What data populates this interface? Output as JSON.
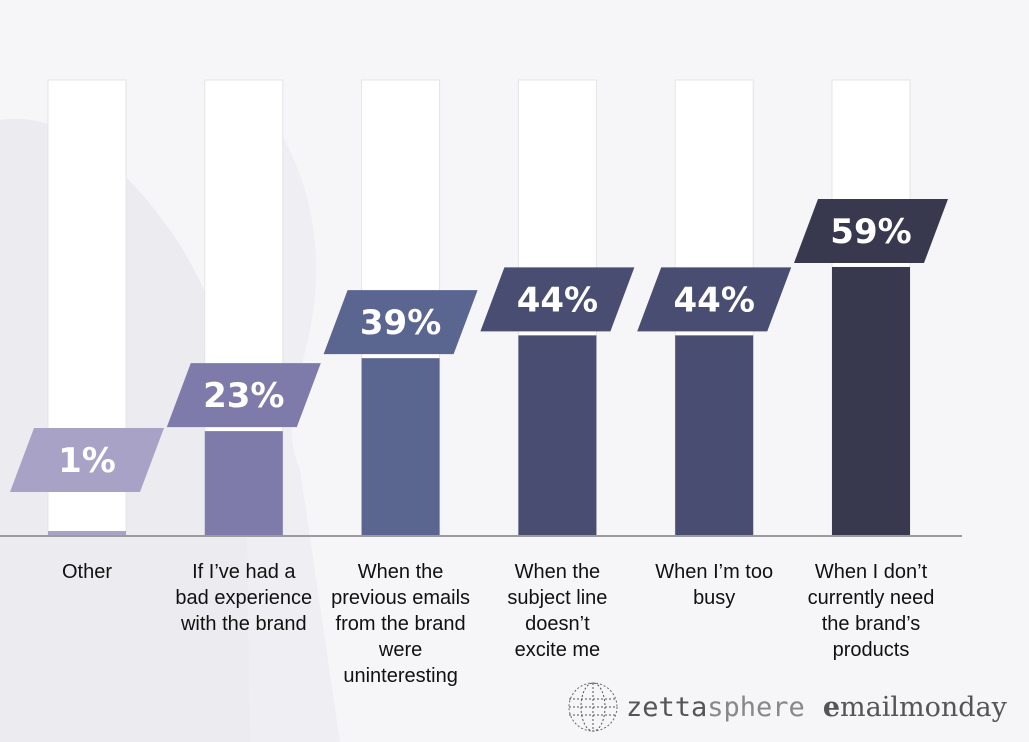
{
  "colors": {
    "bar_1": "#a8a3c6",
    "bar_23": "#7e7baa",
    "bar_39": "#5a6590",
    "bar_44": "#494d72",
    "bar_59": "#38394f",
    "axis": "#9b9b9b",
    "track": "#ffffff"
  },
  "chart_data": {
    "type": "bar",
    "categories": [
      "Other",
      "If I’ve had a\nbad experience\nwith the brand",
      "When the\nprevious emails\nfrom the brand\nwere\nuninteresting",
      "When the\nsubject line\ndoesn’t\nexcite me",
      "When I’m too\nbusy",
      "When I don’t\ncurrently need\nthe brand’s\nproducts"
    ],
    "values": [
      1,
      23,
      39,
      44,
      44,
      59
    ],
    "value_labels": [
      "1%",
      "23%",
      "39%",
      "44%",
      "44%",
      "59%"
    ],
    "bar_colors": [
      "#a8a3c6",
      "#7e7baa",
      "#5a6590",
      "#494d72",
      "#494d72",
      "#38394f"
    ],
    "ylim": [
      0,
      100
    ],
    "grid": false,
    "legend": "none"
  },
  "brand": {
    "logo1_part1": "zetta",
    "logo1_part2": "sphere",
    "logo2_first": "e",
    "logo2_rest": "mailmonday"
  }
}
